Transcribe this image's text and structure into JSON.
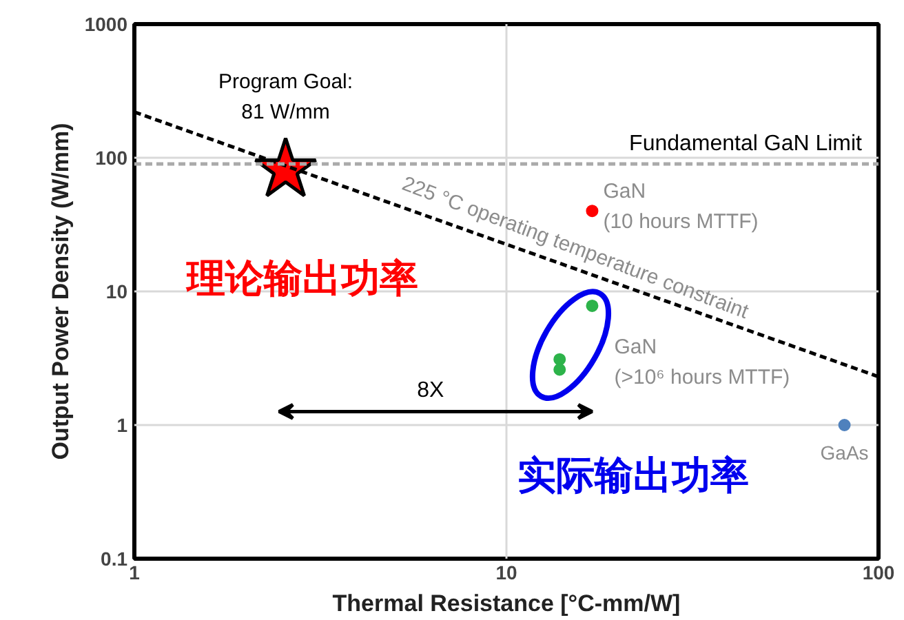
{
  "chart_data": {
    "type": "scatter",
    "xlabel": "Thermal Resistance [°C-mm/W]",
    "ylabel": "Output Power Density (W/mm)",
    "log": "xy",
    "xlim": [
      1,
      100
    ],
    "ylim": [
      0.1,
      1000
    ],
    "xticks": [
      1,
      10,
      100
    ],
    "yticks": [
      0.1,
      1,
      10,
      100,
      1000
    ],
    "grid": true,
    "series": [
      {
        "marker": "star",
        "color": "#ff0000",
        "x": [
          2.55
        ],
        "values": [
          81
        ]
      },
      {
        "marker": "circle",
        "color": "#ff0000",
        "x": [
          17
        ],
        "values": [
          40
        ]
      },
      {
        "marker": "circle",
        "color": "#2db34a",
        "x": [
          17,
          13.9,
          13.9
        ],
        "values": [
          7.8,
          3.1,
          2.6
        ]
      },
      {
        "marker": "circle",
        "color": "#4f81bd",
        "x": [
          81
        ],
        "values": [
          1
        ]
      },
      {
        "type": "line",
        "line_style": "dashed",
        "color": "#000000",
        "x": [
          1,
          100
        ],
        "values": [
          220,
          2.3
        ]
      }
    ],
    "ref_lines": [
      {
        "axis": "y",
        "value": 90,
        "label": "Fundamental GaN Limit",
        "color": "#aaaaaa",
        "line_style": "dashed"
      }
    ],
    "annotations": [
      {
        "text": "Program Goal:\n81 W/mm",
        "x": 2.55,
        "y": 81
      },
      {
        "text": "GaN\n(10 hours MTTF)",
        "x": 17,
        "y": 40
      },
      {
        "text": "GaN\n(>10⁶ hours MTTF)",
        "x": 17,
        "y": 7.8
      },
      {
        "text": "GaAs",
        "x": 81,
        "y": 1
      },
      {
        "text": "225 °C operating temperature constraint",
        "x": 15.3,
        "y": 14.8
      },
      "理论输出功率",
      "实际输出功率",
      "8X"
    ]
  }
}
